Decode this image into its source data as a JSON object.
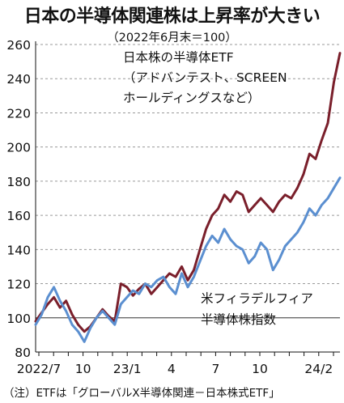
{
  "title": "日本の半導体関連株は上昇率が大きい",
  "subtitle": "（2022年6月末＝100）",
  "note": "（注）ETFは「グローバルX半導体関連－日本株式ETF」",
  "colors": {
    "etf": "#7a1f2b",
    "sox": "#5b8fd0",
    "grid": "#9a9a9a",
    "axis": "#111111"
  },
  "chart_data": {
    "type": "line",
    "x_tick_labels": [
      "2022/7",
      "10",
      "23/1",
      "4",
      "7",
      "10",
      "24/2"
    ],
    "ylim": [
      80,
      260
    ],
    "y_ticks": [
      80,
      100,
      120,
      140,
      160,
      180,
      200,
      220,
      240,
      260
    ],
    "baseline": 100,
    "grid": "horizontal dashed",
    "series": [
      {
        "name": "日本株の半導体ETF",
        "label_lines": [
          "日本株の半導体ETF",
          "（アドバンテスト、SCREEN",
          "ホールディングスなど）"
        ],
        "x": [
          0,
          2,
          4,
          6,
          8,
          10,
          12,
          14,
          16,
          18,
          20,
          22,
          24,
          26,
          28,
          30,
          32,
          34,
          36,
          38,
          40,
          42,
          44,
          46,
          48,
          50,
          52,
          54,
          56,
          58,
          60,
          62,
          64,
          66,
          68,
          70,
          72,
          74,
          76,
          78,
          80,
          82,
          84,
          86,
          88,
          90,
          92,
          94,
          96,
          98,
          100
        ],
        "values": [
          98,
          103,
          108,
          112,
          106,
          110,
          102,
          96,
          92,
          95,
          100,
          105,
          101,
          98,
          120,
          118,
          113,
          117,
          120,
          114,
          118,
          122,
          126,
          124,
          130,
          122,
          128,
          140,
          152,
          160,
          164,
          172,
          168,
          174,
          172,
          162,
          166,
          170,
          166,
          162,
          168,
          172,
          170,
          176,
          184,
          196,
          193,
          204,
          214,
          238,
          255
        ]
      },
      {
        "name": "米フィラデルフィア半導体株指数",
        "label_lines": [
          "米フィラデルフィア",
          "半導体株指数"
        ],
        "x": [
          0,
          2,
          4,
          6,
          8,
          10,
          12,
          14,
          16,
          18,
          20,
          22,
          24,
          26,
          28,
          30,
          32,
          34,
          36,
          38,
          40,
          42,
          44,
          46,
          48,
          50,
          52,
          54,
          56,
          58,
          60,
          62,
          64,
          66,
          68,
          70,
          72,
          74,
          76,
          78,
          80,
          82,
          84,
          86,
          88,
          90,
          92,
          94,
          96,
          98,
          100
        ],
        "values": [
          96,
          102,
          112,
          118,
          110,
          104,
          96,
          92,
          86,
          94,
          100,
          104,
          100,
          96,
          108,
          112,
          116,
          114,
          120,
          118,
          122,
          124,
          118,
          114,
          126,
          118,
          124,
          133,
          142,
          148,
          144,
          152,
          146,
          142,
          140,
          132,
          136,
          144,
          140,
          128,
          134,
          142,
          146,
          150,
          156,
          164,
          160,
          166,
          170,
          176,
          182
        ]
      }
    ]
  }
}
